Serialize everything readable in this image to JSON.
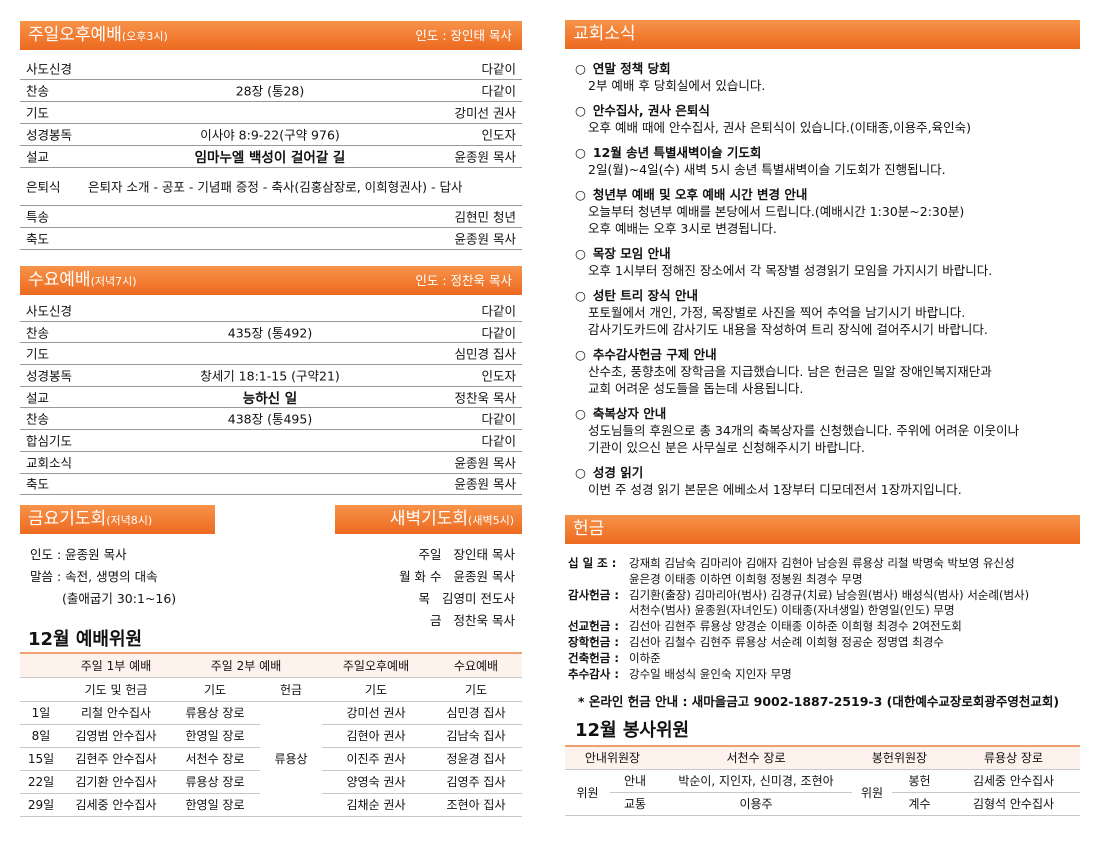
{
  "sunday_service": {
    "title": "주일오후예배",
    "time": "(오후3시)",
    "leader": "인도 : 장인태 목사",
    "rows": [
      {
        "item": "사도신경",
        "by": "다같이"
      },
      {
        "item": "찬송",
        "content": "28장 (통28)",
        "by": "다같이"
      },
      {
        "item": "기도",
        "by": "강미선 권사"
      },
      {
        "item": "성경봉독",
        "content": "이사야 8:9-22(구약 976)",
        "by": "인도자"
      },
      {
        "item": "설교",
        "sermon": "임마누엘 백성이 걸어갈 길",
        "by": "윤종원 목사"
      },
      {
        "item": "은퇴식",
        "program": "은퇴자 소개 - 공포 - 기념패 증정 - 축사(김홍삼장로, 이희형권사) - 답사"
      },
      {
        "item": "특송",
        "by": "김현민 청년"
      },
      {
        "item": "축도",
        "by": "윤종원 목사"
      }
    ]
  },
  "wednesday_service": {
    "title": "수요예배",
    "time": "(저녁7시)",
    "leader": "인도 : 정찬욱 목사",
    "rows": [
      {
        "item": "사도신경",
        "by": "다같이"
      },
      {
        "item": "찬송",
        "content": "435장 (통492)",
        "by": "다같이"
      },
      {
        "item": "기도",
        "by": "심민경 집사"
      },
      {
        "item": "성경봉독",
        "content": "창세기 18:1-15 (구약21)",
        "by": "인도자"
      },
      {
        "item": "설교",
        "sermon": "능하신 일",
        "by": "정찬욱 목사"
      },
      {
        "item": "찬송",
        "content": "438장 (통495)",
        "by": "다같이"
      },
      {
        "item": "합심기도",
        "by": "다같이"
      },
      {
        "item": "교회소식",
        "by": "윤종원 목사"
      },
      {
        "item": "축도",
        "by": "윤종원 목사"
      }
    ]
  },
  "friday_prayer": {
    "title": "금요기도회",
    "time": "(저녁8시)",
    "lines": [
      "인도 : 윤종원 목사",
      "말씀 : 속전, 생명의 대속",
      "(출애굽기 30:1~16)"
    ]
  },
  "dawn_prayer": {
    "title": "새벽기도회",
    "time": "(새벽5시)",
    "lines": [
      {
        "day": "주일",
        "name": "장인태 목사"
      },
      {
        "day": "월 화 수",
        "name": "윤종원 목사"
      },
      {
        "day": "목",
        "name": "김영미 전도사"
      },
      {
        "day": "금",
        "name": "정찬욱 목사"
      }
    ]
  },
  "worship_committee": {
    "title": "12월 예배위원",
    "header1": [
      "주일 1부 예배",
      "주일 2부 예배",
      "주일오후예배",
      "수요예배"
    ],
    "header2": [
      "기도 및 헌금",
      "기도",
      "헌금",
      "기도",
      "기도"
    ],
    "offering_all": "류용상",
    "rows": [
      [
        "1일",
        "리철 안수집사",
        "류용상 장로",
        "강미선 권사",
        "심민경 집사"
      ],
      [
        "8일",
        "김영범 안수집사",
        "한영일 장로",
        "김현아 권사",
        "김남숙 집사"
      ],
      [
        "15일",
        "김현주 안수집사",
        "서천수 장로",
        "이진주 권사",
        "정윤경 집사"
      ],
      [
        "22일",
        "김기환 안수집사",
        "류용상 장로",
        "양영숙 권사",
        "김영주 집사"
      ],
      [
        "29일",
        "김세중 안수집사",
        "한영일 장로",
        "김채순 권사",
        "조현아 집사"
      ]
    ]
  },
  "church_news": {
    "title": "교회소식",
    "bullet": "○",
    "items": [
      {
        "title": "연말 정책 당회",
        "lines": [
          "2부 예배 후 당회실에서 있습니다."
        ]
      },
      {
        "title": "안수집사, 권사 은퇴식",
        "lines": [
          "오후 예배 때에 안수집사, 권사 은퇴식이 있습니다.(이태종,이용주,육인숙)"
        ]
      },
      {
        "title": "12월 송년 특별새벽이슬 기도회",
        "lines": [
          "2일(월)~4일(수) 새벽 5시 송년 특별새벽이슬 기도회가 진행됩니다."
        ]
      },
      {
        "title": "청년부 예배 및 오후 예배 시간 변경 안내",
        "lines": [
          "오늘부터 청년부 예배를 본당에서 드립니다.(예배시간 1:30분~2:30분)",
          "오후 예배는 오후 3시로 변경됩니다."
        ]
      },
      {
        "title": "목장 모임 안내",
        "lines": [
          "오후 1시부터 정해진 장소에서 각 목장별 성경읽기 모임을 가지시기 바랍니다."
        ]
      },
      {
        "title": "성탄 트리 장식 안내",
        "lines": [
          "포토월에서 개인, 가정, 목장별로 사진을 찍어 추억을 남기시기 바랍니다.",
          "감사기도카드에 감사기도 내용을 작성하여 트리 장식에 걸어주시기 바랍니다."
        ]
      },
      {
        "title": "추수감사헌금 구제 안내",
        "lines": [
          "산수초, 풍향초에 장학금을 지급했습니다. 남은 헌금은 밀알 장애인복지재단과",
          "교회 어려운 성도들을 돕는데 사용됩니다."
        ]
      },
      {
        "title": "축복상자 안내",
        "lines": [
          "성도님들의 후원으로 총 34개의 축복상자를 신청했습니다. 주위에 어려운 이웃이나",
          "기관이 있으신 분은 사무실로 신청해주시기 바랍니다."
        ]
      },
      {
        "title": "성경 읽기",
        "lines": [
          "이번 주 성경 읽기 본문은 에베소서 1장부터 디모데전서 1장까지입니다."
        ]
      }
    ]
  },
  "offering": {
    "title": "헌금",
    "entries": [
      {
        "label": "십 일 조 :",
        "lines": [
          "강재희 김남숙 김마리아 김애자 김현아 남승원 류용상 리철 박명숙 박보영 유신성",
          "윤은경 이태종 이하연 이희형 정봉원 최경수 무명"
        ]
      },
      {
        "label": "감사헌금 :",
        "lines": [
          "김기환(출장) 김마리아(범사) 김경규(치료) 남승원(범사) 배성식(범사) 서순례(범사)",
          "서천수(범사) 윤종원(자녀인도) 이태종(자녀생일) 한영일(인도) 무명"
        ]
      },
      {
        "label": "선교헌금 :",
        "lines": [
          "김선아 김현주 류용상 양경순 이태종 이하준 이희형 최경수 2여전도회"
        ]
      },
      {
        "label": "장학헌금 :",
        "lines": [
          "김선아 김철수 김현주 류용상 서순례 이희형 정공순 정명엽 최경수"
        ]
      },
      {
        "label": "건축헌금 :",
        "lines": [
          "이하준"
        ]
      },
      {
        "label": "추수감사 :",
        "lines": [
          "강수일 배성식 윤인숙 지인자 무명"
        ]
      }
    ],
    "online": "* 온라인 헌금 안내 : 새마을금고 9002-1887-2519-3 (대한예수교장로회광주영천교회)"
  },
  "service_committee": {
    "title": "12월 봉사위원",
    "head": [
      "안내위원장",
      "서천수 장로",
      "봉헌위원장",
      "류용상 장로"
    ],
    "left_group": "위원",
    "right_group": "위원",
    "rows": [
      [
        "안내",
        "박순이, 지인자, 신미경, 조현아",
        "봉헌",
        "김세중 안수집사"
      ],
      [
        "교통",
        "이용주",
        "계수",
        "김형석 안수집사"
      ]
    ]
  }
}
